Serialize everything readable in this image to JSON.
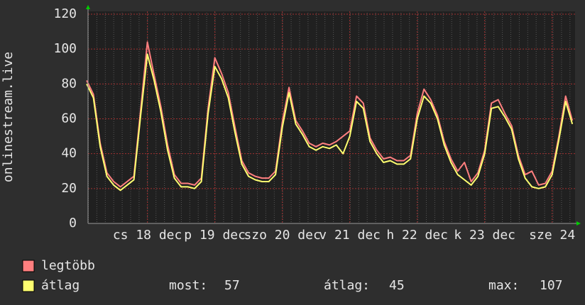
{
  "chart_data": {
    "type": "line",
    "ylabel": "onlinestream.live",
    "xlim": [
      17.12,
      24.34
    ],
    "ylim": [
      0,
      120
    ],
    "yticks": [
      0,
      20,
      40,
      60,
      80,
      100,
      120
    ],
    "xticks": [
      {
        "value": 18,
        "label": "cs 18 dec"
      },
      {
        "value": 19,
        "label": "p 19 dec"
      },
      {
        "value": 20,
        "label": "szo 20 dec"
      },
      {
        "value": 21,
        "label": "v 21 dec"
      },
      {
        "value": 22,
        "label": "h 22 dec"
      },
      {
        "value": 23,
        "label": "k 23 dec"
      },
      {
        "value": 24,
        "label": "sze 24"
      }
    ],
    "grid": true,
    "x": [
      17.1,
      17.2,
      17.3,
      17.4,
      17.5,
      17.6,
      17.7,
      17.8,
      17.9,
      18.0,
      18.1,
      18.2,
      18.3,
      18.4,
      18.5,
      18.6,
      18.7,
      18.8,
      18.9,
      19.0,
      19.1,
      19.2,
      19.3,
      19.4,
      19.5,
      19.6,
      19.7,
      19.8,
      19.9,
      20.0,
      20.1,
      20.2,
      20.3,
      20.4,
      20.5,
      20.6,
      20.7,
      20.8,
      20.9,
      21.0,
      21.1,
      21.2,
      21.3,
      21.4,
      21.5,
      21.6,
      21.7,
      21.8,
      21.9,
      22.0,
      22.1,
      22.2,
      22.3,
      22.4,
      22.5,
      22.6,
      22.7,
      22.8,
      22.9,
      23.0,
      23.1,
      23.2,
      23.3,
      23.4,
      23.5,
      23.6,
      23.7,
      23.8,
      23.9,
      24.0,
      24.1,
      24.2,
      24.3
    ],
    "series": [
      {
        "name": "legtöbb",
        "color": "#ff7f7f",
        "values": [
          82,
          74,
          46,
          29,
          24,
          21,
          24,
          27,
          65,
          104,
          85,
          67,
          45,
          28,
          23,
          23,
          22,
          26,
          66,
          95,
          86,
          75,
          55,
          36,
          29,
          27,
          26,
          26,
          30,
          58,
          78,
          59,
          53,
          46,
          44,
          46,
          45,
          47,
          50,
          53,
          73,
          69,
          49,
          42,
          37,
          38,
          36,
          36,
          39,
          63,
          77,
          71,
          62,
          47,
          37,
          30,
          35,
          24,
          29,
          42,
          69,
          71,
          63,
          56,
          39,
          28,
          30,
          22,
          23,
          30,
          50,
          73,
          59
        ]
      },
      {
        "name": "átlag",
        "color": "#ffff70",
        "values": [
          80,
          72,
          44,
          27,
          22,
          19,
          22,
          25,
          62,
          97,
          82,
          64,
          42,
          26,
          21,
          21,
          20,
          24,
          63,
          90,
          83,
          72,
          52,
          34,
          27,
          25,
          24,
          24,
          28,
          55,
          75,
          57,
          51,
          44,
          42,
          44,
          43,
          45,
          40,
          50,
          70,
          66,
          47,
          40,
          35,
          36,
          34,
          34,
          37,
          60,
          73,
          69,
          60,
          45,
          35,
          28,
          25,
          22,
          27,
          40,
          66,
          67,
          61,
          54,
          37,
          26,
          21,
          20,
          21,
          28,
          48,
          70,
          57
        ]
      }
    ],
    "stats": [
      {
        "label": "most:",
        "value": 57
      },
      {
        "label": "átlag:",
        "value": 45
      },
      {
        "label": "max:",
        "value": 107
      }
    ]
  }
}
